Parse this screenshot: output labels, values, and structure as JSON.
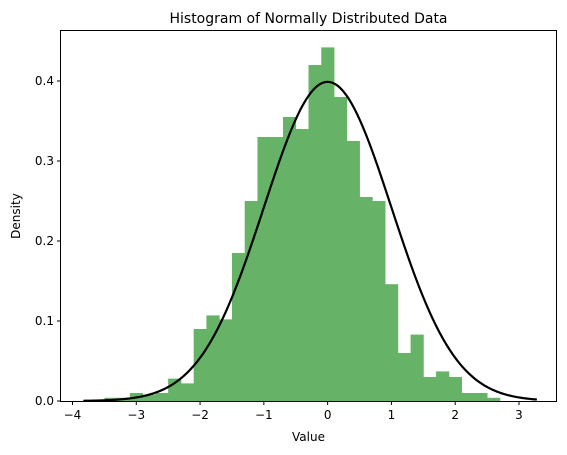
{
  "chart_data": {
    "type": "bar",
    "title": "Histogram of Normally Distributed Data",
    "xlabel": "Value",
    "ylabel": "Density",
    "xlim": [
      -4.18,
      3.58
    ],
    "ylim": [
      0,
      0.4625
    ],
    "x_ticks": [
      -4,
      -3,
      -2,
      -1,
      0,
      1,
      2,
      3
    ],
    "y_ticks": [
      0.0,
      0.1,
      0.2,
      0.3,
      0.4
    ],
    "grid": false,
    "legend": "none",
    "bar_color": "#66b266",
    "curve_color": "#000000",
    "bins": {
      "edges": [
        -3.5,
        -3.1,
        -2.9,
        -2.7,
        -2.5,
        -2.3,
        -2.1,
        -1.9,
        -1.7,
        -1.5,
        -1.3,
        -1.1,
        -0.9,
        -0.7,
        -0.5,
        -0.3,
        -0.1,
        0.1,
        0.3,
        0.5,
        0.7,
        0.9,
        1.1,
        1.3,
        1.5,
        1.7,
        1.9,
        2.1,
        2.3,
        2.5,
        2.7,
        2.97
      ],
      "values": [
        0.004,
        0.01,
        0.008,
        0.01,
        0.028,
        0.022,
        0.09,
        0.107,
        0.102,
        0.185,
        0.25,
        0.33,
        0.33,
        0.355,
        0.34,
        0.42,
        0.442,
        0.38,
        0.325,
        0.255,
        0.25,
        0.146,
        0.06,
        0.083,
        0.03,
        0.037,
        0.03,
        0.01,
        0.01,
        0.004,
        0.0
      ]
    },
    "pdf_curve": {
      "name": "Normal PDF",
      "mean": 0,
      "std": 1,
      "x_range": [
        -3.83,
        3.28
      ],
      "peak": 0.399
    }
  }
}
